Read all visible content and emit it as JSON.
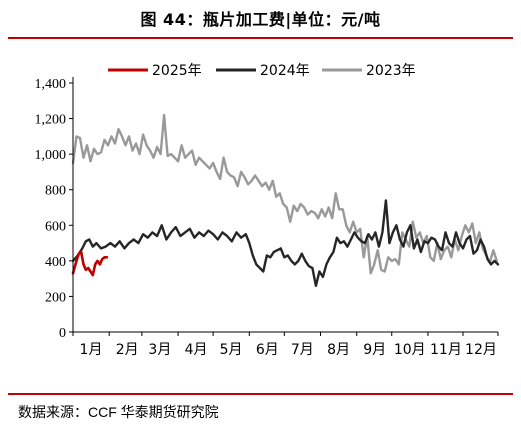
{
  "title": "图 44：瓶片加工费|单位：元/吨",
  "source": {
    "prefix": "数据来源：",
    "name": "CCF 华泰期货研究院"
  },
  "colors": {
    "s2025": "#c00000",
    "s2024": "#262626",
    "s2023": "#999999",
    "accent": "#c00000"
  },
  "chart_data": {
    "type": "line",
    "title": "",
    "xlabel": "",
    "ylabel": "",
    "x_unit": "day_of_year",
    "ylim": [
      0,
      1400
    ],
    "xlim": [
      1,
      365
    ],
    "y_ticks": [
      0,
      200,
      400,
      600,
      800,
      "1,000",
      "1,200",
      "1,400"
    ],
    "y_tick_values": [
      0,
      200,
      400,
      600,
      800,
      1000,
      1200,
      1400
    ],
    "month_labels": [
      "1月",
      "2月",
      "3月",
      "4月",
      "5月",
      "6月",
      "7月",
      "8月",
      "9月",
      "10月",
      "11月",
      "12月"
    ],
    "legend_position": "top",
    "grid": false,
    "series": [
      {
        "name": "2025年",
        "color_key": "s2025",
        "x": [
          1,
          4,
          6,
          8,
          10,
          12,
          14,
          16,
          18,
          20,
          22,
          24,
          26,
          28,
          30
        ],
        "y": [
          330,
          400,
          440,
          450,
          380,
          350,
          360,
          340,
          320,
          380,
          400,
          380,
          410,
          420,
          420
        ]
      },
      {
        "name": "2024年",
        "color_key": "s2024",
        "x": [
          1,
          5,
          9,
          12,
          15,
          18,
          21,
          25,
          29,
          33,
          37,
          41,
          45,
          49,
          53,
          57,
          61,
          65,
          69,
          73,
          77,
          81,
          85,
          89,
          93,
          97,
          101,
          105,
          109,
          113,
          117,
          121,
          125,
          129,
          133,
          137,
          141,
          145,
          149,
          152,
          155,
          158,
          161,
          164,
          167,
          170,
          173,
          176,
          179,
          182,
          185,
          188,
          191,
          194,
          197,
          200,
          203,
          206,
          209,
          212,
          215,
          218,
          221,
          224,
          227,
          230,
          233,
          236,
          239,
          242,
          245,
          248,
          251,
          254,
          257,
          260,
          263,
          266,
          269,
          272,
          275,
          278,
          281,
          284,
          287,
          290,
          293,
          296,
          299,
          302,
          305,
          308,
          311,
          314,
          317,
          320,
          323,
          326,
          329,
          332,
          335,
          338,
          341,
          344,
          347,
          350,
          353,
          356,
          359,
          362,
          365
        ],
        "y": [
          400,
          430,
          470,
          510,
          520,
          480,
          500,
          470,
          480,
          500,
          480,
          510,
          470,
          500,
          520,
          500,
          550,
          530,
          560,
          540,
          600,
          520,
          560,
          590,
          540,
          560,
          580,
          530,
          560,
          540,
          570,
          550,
          520,
          560,
          540,
          510,
          560,
          530,
          550,
          500,
          430,
          380,
          360,
          340,
          430,
          420,
          450,
          460,
          470,
          420,
          430,
          400,
          380,
          400,
          440,
          400,
          370,
          360,
          260,
          340,
          310,
          380,
          420,
          450,
          530,
          500,
          510,
          480,
          520,
          560,
          530,
          510,
          500,
          550,
          520,
          560,
          480,
          560,
          740,
          500,
          560,
          600,
          520,
          480,
          560,
          600,
          470,
          520,
          450,
          510,
          500,
          530,
          520,
          480,
          460,
          560,
          500,
          480,
          560,
          500,
          470,
          520,
          540,
          440,
          460,
          520,
          480,
          410,
          380,
          400,
          380
        ]
      },
      {
        "name": "2023年",
        "color_key": "s2023",
        "x": [
          1,
          4,
          7,
          10,
          13,
          16,
          19,
          22,
          25,
          28,
          31,
          34,
          37,
          40,
          43,
          46,
          49,
          52,
          55,
          58,
          61,
          64,
          67,
          70,
          73,
          76,
          79,
          82,
          85,
          88,
          91,
          94,
          97,
          100,
          103,
          106,
          109,
          112,
          115,
          118,
          121,
          124,
          127,
          130,
          133,
          136,
          139,
          142,
          145,
          148,
          151,
          154,
          157,
          160,
          163,
          166,
          169,
          172,
          175,
          178,
          181,
          184,
          187,
          190,
          193,
          196,
          199,
          202,
          205,
          208,
          211,
          214,
          217,
          220,
          223,
          226,
          229,
          232,
          235,
          238,
          241,
          244,
          247,
          250,
          253,
          256,
          259,
          262,
          265,
          268,
          271,
          274,
          277,
          280,
          283,
          286,
          289,
          292,
          295,
          298,
          301,
          304,
          307,
          310,
          313,
          316,
          319,
          322,
          325,
          328,
          331,
          334,
          337,
          340,
          343,
          346,
          349,
          352,
          355,
          358,
          361,
          364
        ],
        "y": [
          950,
          1100,
          1090,
          980,
          1050,
          960,
          1030,
          1000,
          1010,
          1080,
          1050,
          1100,
          1060,
          1140,
          1100,
          1050,
          1100,
          1020,
          1060,
          1000,
          1110,
          1050,
          1020,
          980,
          1040,
          1000,
          1220,
          990,
          1000,
          980,
          960,
          1050,
          980,
          1000,
          1020,
          940,
          980,
          960,
          940,
          920,
          950,
          900,
          860,
          980,
          900,
          880,
          870,
          820,
          900,
          870,
          830,
          850,
          880,
          850,
          820,
          840,
          800,
          850,
          760,
          780,
          720,
          700,
          620,
          710,
          680,
          720,
          700,
          660,
          680,
          670,
          640,
          690,
          650,
          700,
          640,
          780,
          690,
          690,
          600,
          560,
          620,
          560,
          580,
          420,
          540,
          330,
          380,
          460,
          350,
          340,
          420,
          400,
          410,
          380,
          560,
          520,
          480,
          620,
          530,
          560,
          500,
          540,
          420,
          400,
          500,
          410,
          460,
          480,
          420,
          520,
          460,
          540,
          600,
          560,
          610,
          500,
          560,
          470,
          430,
          390,
          460,
          400
        ]
      }
    ]
  }
}
